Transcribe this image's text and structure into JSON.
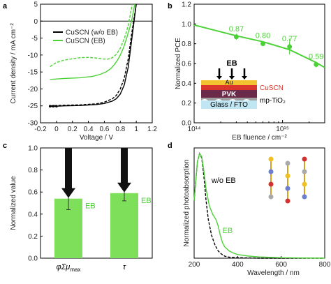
{
  "colors": {
    "black": "#000000",
    "green": "#4cd137",
    "bar_green": "#7ee05a"
  },
  "chart_data": [
    {
      "panel": "a",
      "type": "line",
      "xlabel": "Voltage / V",
      "ylabel": "Current density / mA cm⁻²",
      "xlim": [
        -0.2,
        1.2
      ],
      "ylim": [
        -30,
        5
      ],
      "xticks": [
        "-0.2",
        "0",
        "0.2",
        "0.4",
        "0.6",
        "0.8",
        "1",
        "1.2"
      ],
      "yticks": [
        "5",
        "0",
        "-5",
        "-10",
        "-15",
        "-20",
        "-25",
        "-30"
      ],
      "legend": [
        "CuSCN (w/o EB)",
        "CuSCN (EB)"
      ],
      "series": [
        {
          "name": "CuSCN (w/o EB)",
          "style": "solid",
          "color": "#000000",
          "x": [
            -0.08,
            0.1,
            0.3,
            0.5,
            0.6,
            0.7,
            0.75,
            0.8,
            0.85,
            0.9,
            0.94,
            0.97,
            1.0
          ],
          "y": [
            -25.2,
            -25.0,
            -24.9,
            -24.6,
            -24.3,
            -23.6,
            -22.9,
            -21.5,
            -18.8,
            -13.5,
            -6.0,
            -0.5,
            5.0
          ]
        },
        {
          "name": "CuSCN (w/o EB) reverse",
          "style": "dashed",
          "color": "#000000",
          "x": [
            -0.08,
            0.1,
            0.3,
            0.5,
            0.6,
            0.7,
            0.75,
            0.8,
            0.85,
            0.9,
            0.94,
            0.97,
            1.0
          ],
          "y": [
            -25.0,
            -24.8,
            -24.7,
            -24.4,
            -23.9,
            -22.9,
            -21.9,
            -20.0,
            -16.8,
            -11.0,
            -4.0,
            0.5,
            5.0
          ]
        },
        {
          "name": "CuSCN (EB)",
          "style": "solid",
          "color": "#4cd137",
          "x": [
            -0.08,
            0.1,
            0.3,
            0.45,
            0.55,
            0.62,
            0.68,
            0.72,
            0.76,
            0.8,
            0.84,
            0.88,
            0.92,
            0.95,
            0.98
          ],
          "y": [
            -17.2,
            -16.9,
            -16.7,
            -16.3,
            -15.7,
            -15.0,
            -14.0,
            -13.0,
            -11.7,
            -10.0,
            -7.8,
            -5.0,
            -1.8,
            1.0,
            5.0
          ]
        },
        {
          "name": "CuSCN (EB) reverse",
          "style": "dashed",
          "color": "#4cd137",
          "x": [
            -0.08,
            0.0,
            0.1,
            0.2,
            0.3,
            0.4,
            0.5,
            0.6,
            0.65,
            0.7,
            0.75,
            0.8,
            0.85,
            0.9,
            0.95
          ],
          "y": [
            -13.4,
            -12.2,
            -11.5,
            -11.1,
            -10.8,
            -10.7,
            -10.9,
            -11.2,
            -11.2,
            -10.8,
            -9.8,
            -8.0,
            -5.2,
            -1.2,
            5.0
          ]
        }
      ]
    },
    {
      "panel": "b",
      "type": "scatter",
      "xlabel": "EB fluence / cm⁻²",
      "ylabel": "Normalized PCE",
      "xscale": "log",
      "xlim": [
        100000000000000.0,
        3000000000000000.0
      ],
      "ylim": [
        0.0,
        1.2
      ],
      "xticks": [
        "10¹⁴",
        "10¹⁵"
      ],
      "yticks": [
        "1.2",
        "1.0",
        "0.8",
        "0.6",
        "0.4",
        "0.2",
        "0.0"
      ],
      "points": [
        {
          "x": 300000000000000.0,
          "y": 0.87,
          "err": 0.03,
          "label": "0.87"
        },
        {
          "x": 600000000000000.0,
          "y": 0.8,
          "err": 0.02,
          "label": "0.80"
        },
        {
          "x": 1200000000000000.0,
          "y": 0.77,
          "err": 0.08,
          "label": "0.77"
        },
        {
          "x": 2400000000000000.0,
          "y": 0.59,
          "err": 0.03,
          "label": "0.59"
        }
      ],
      "fit": {
        "x": [
          100000000000000.0,
          300000000000000.0,
          600000000000000.0,
          1200000000000000.0,
          2400000000000000.0,
          3000000000000000.0
        ],
        "y": [
          0.99,
          0.88,
          0.82,
          0.74,
          0.61,
          0.56
        ]
      },
      "inset": {
        "arrow_label": "EB",
        "layers": [
          "Au",
          "CuSCN",
          "PVK",
          "mp-TiO₂",
          "Glass / FTO"
        ]
      }
    },
    {
      "panel": "c",
      "type": "bar",
      "ylabel": "Normalized value",
      "ylim": [
        0.0,
        1.0
      ],
      "yticks": [
        "1.0",
        "0.8",
        "0.6",
        "0.4",
        "0.2",
        "0.0"
      ],
      "categories": [
        "φΣμmax",
        "τ"
      ],
      "values": [
        0.54,
        0.59
      ],
      "errors": [
        0.1,
        0.07
      ],
      "bar_labels": [
        "EB",
        "EB"
      ]
    },
    {
      "panel": "d",
      "type": "line",
      "xlabel": "Wavelength / nm",
      "ylabel": "Normalized photoabsorption",
      "xlim": [
        200,
        800
      ],
      "xticks": [
        "200",
        "400",
        "600",
        "800"
      ],
      "labels": [
        "w/o EB",
        "EB"
      ],
      "series": [
        {
          "name": "w/o EB",
          "style": "dashed",
          "color": "#000000",
          "x": [
            200,
            215,
            225,
            235,
            245,
            255,
            265,
            280,
            295,
            310,
            325,
            340,
            360,
            400,
            500,
            600,
            800
          ],
          "y": [
            0.55,
            0.92,
            1.0,
            0.96,
            0.78,
            0.55,
            0.37,
            0.22,
            0.13,
            0.07,
            0.04,
            0.02,
            0.01,
            0.005,
            0.0,
            0.0,
            0.0
          ]
        },
        {
          "name": "EB",
          "style": "solid",
          "color": "#4cd137",
          "x": [
            200,
            215,
            225,
            235,
            245,
            255,
            270,
            285,
            300,
            310,
            320,
            330,
            340,
            360,
            380,
            400,
            450,
            500,
            600,
            700,
            800
          ],
          "y": [
            0.55,
            0.92,
            1.0,
            0.97,
            0.83,
            0.66,
            0.5,
            0.42,
            0.37,
            0.31,
            0.22,
            0.15,
            0.11,
            0.07,
            0.05,
            0.035,
            0.02,
            0.012,
            0.005,
            0.002,
            0.0
          ]
        }
      ]
    }
  ]
}
